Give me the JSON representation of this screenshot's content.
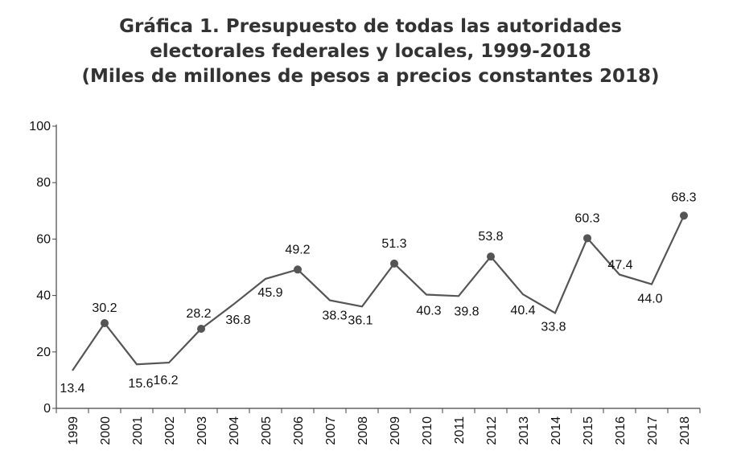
{
  "chart_data": {
    "type": "line",
    "title": [
      "Gráfica 1. Presupuesto de todas las autoridades",
      "electorales federales y locales, 1999-2018",
      "(Miles de millones de pesos a precios constantes 2018)"
    ],
    "xlabel": "",
    "ylabel": "",
    "ylim": [
      0,
      100
    ],
    "yticks": [
      "0",
      "20",
      "40",
      "60",
      "80",
      "100"
    ],
    "categories": [
      "1999",
      "2000",
      "2001",
      "2002",
      "2003",
      "2004",
      "2005",
      "2006",
      "2007",
      "2008",
      "2009",
      "2010",
      "2011",
      "2012",
      "2013",
      "2014",
      "2015",
      "2016",
      "2017",
      "2018"
    ],
    "values": [
      13.4,
      30.2,
      15.6,
      16.2,
      28.2,
      36.8,
      45.9,
      49.2,
      38.3,
      36.1,
      51.3,
      40.3,
      39.8,
      53.8,
      40.4,
      33.8,
      60.3,
      47.4,
      44.0,
      68.3
    ],
    "labels": [
      "13.4",
      "30.2",
      "15.6",
      "16.2",
      "28.2",
      "36.8",
      "45.9",
      "49.2",
      "38.3",
      "36.1",
      "51.3",
      "40.3",
      "39.8",
      "53.8",
      "40.4",
      "33.8",
      "60.3",
      "47.4",
      "44.0",
      "68.3"
    ],
    "markers": [
      "2000",
      "2003",
      "2006",
      "2009",
      "2012",
      "2015",
      "2018"
    ],
    "line_color": "#555555",
    "marker_color": "#555555",
    "grid": false
  }
}
